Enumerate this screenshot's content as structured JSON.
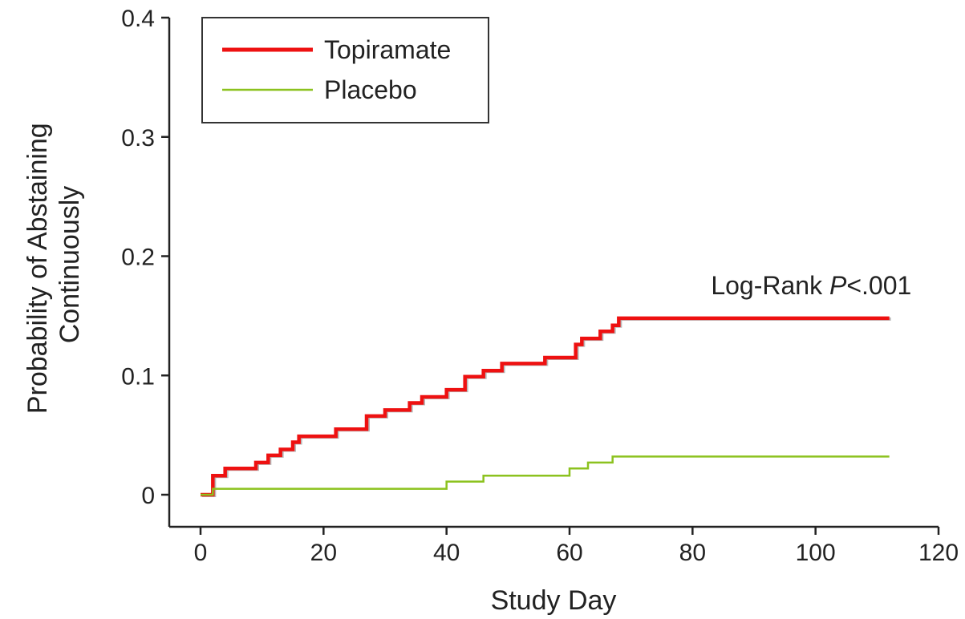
{
  "chart_data": {
    "type": "line",
    "step": true,
    "xlabel": "Study Day",
    "ylabel_lines": [
      "Probability of Abstaining",
      "Continuously"
    ],
    "xlim": [
      0,
      120
    ],
    "ylim": [
      0,
      0.4
    ],
    "x_ticks": [
      0,
      20,
      40,
      60,
      80,
      100,
      120
    ],
    "x_tick_labels": [
      "0",
      "20",
      "40",
      "60",
      "80",
      "100",
      "120"
    ],
    "y_ticks": [
      0,
      0.1,
      0.2,
      0.3,
      0.4
    ],
    "y_tick_labels": [
      "0",
      "0.1",
      "0.2",
      "0.3",
      "0.4"
    ],
    "grid": false,
    "legend_position": "top-left",
    "annotation": {
      "prefix": "Log-Rank ",
      "italic": "P",
      "suffix": "<.001",
      "x": 83,
      "y": 0.168
    },
    "series": [
      {
        "name": "Topiramate",
        "color": "#ee1111",
        "x": [
          0,
          2,
          4,
          9,
          11,
          13,
          15,
          16,
          22,
          27,
          30,
          34,
          36,
          40,
          43,
          46,
          49,
          56,
          61,
          62,
          65,
          67,
          68,
          112
        ],
        "y": [
          0,
          0.016,
          0.022,
          0.027,
          0.033,
          0.038,
          0.044,
          0.049,
          0.055,
          0.066,
          0.071,
          0.077,
          0.082,
          0.088,
          0.099,
          0.104,
          0.11,
          0.115,
          0.126,
          0.131,
          0.137,
          0.142,
          0.148,
          0.148
        ]
      },
      {
        "name": "Placebo",
        "color": "#8cc21f",
        "x": [
          0,
          2,
          40,
          46,
          60,
          63,
          67,
          112
        ],
        "y": [
          0,
          0.005,
          0.011,
          0.016,
          0.022,
          0.027,
          0.032,
          0.032
        ]
      }
    ]
  }
}
